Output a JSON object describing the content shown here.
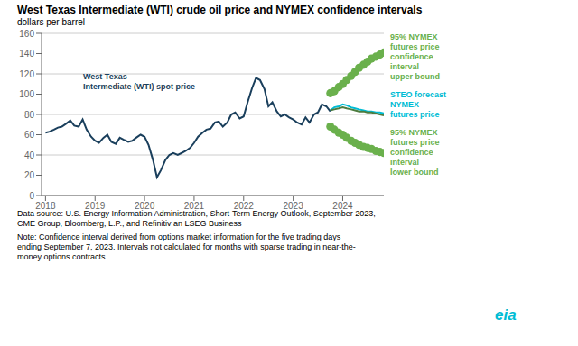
{
  "chart_data": {
    "type": "line",
    "title": "West Texas Intermediate (WTI) crude oil price and NYMEX confidence intervals",
    "subtitle": "dollars per barrel",
    "xlim": [
      2017.92,
      2024.83
    ],
    "xticks": [
      2018,
      2019,
      2020,
      2021,
      2022,
      2023,
      2024
    ],
    "ylim": [
      0,
      160
    ],
    "yticks": [
      0,
      20,
      40,
      60,
      80,
      100,
      120,
      140,
      160
    ],
    "grid": true,
    "series": [
      {
        "type": "line",
        "color": "#1a3f5c",
        "x": [
          2018.0,
          2018.08,
          2018.17,
          2018.25,
          2018.33,
          2018.42,
          2018.5,
          2018.58,
          2018.67,
          2018.75,
          2018.83,
          2018.92,
          2019.0,
          2019.08,
          2019.17,
          2019.25,
          2019.33,
          2019.42,
          2019.5,
          2019.58,
          2019.67,
          2019.75,
          2019.83,
          2019.92,
          2020.0,
          2020.08,
          2020.17,
          2020.25,
          2020.33,
          2020.42,
          2020.5,
          2020.58,
          2020.67,
          2020.75,
          2020.83,
          2020.92,
          2021.0,
          2021.08,
          2021.17,
          2021.25,
          2021.33,
          2021.42,
          2021.5,
          2021.58,
          2021.67,
          2021.75,
          2021.83,
          2021.92,
          2022.0,
          2022.08,
          2022.17,
          2022.25,
          2022.33,
          2022.42,
          2022.5,
          2022.58,
          2022.67,
          2022.75,
          2022.83,
          2022.92,
          2023.0,
          2023.08,
          2023.17,
          2023.25,
          2023.33,
          2023.42,
          2023.5,
          2023.58,
          2023.67,
          2023.75
        ],
        "values": [
          62,
          63,
          65,
          67,
          68,
          71,
          74,
          69,
          68,
          75,
          65,
          58,
          54,
          52,
          57,
          60,
          53,
          51,
          57,
          55,
          53,
          54,
          57,
          60,
          58,
          50,
          35,
          18,
          25,
          35,
          40,
          42,
          40,
          42,
          44,
          47,
          52,
          58,
          62,
          65,
          66,
          72,
          73,
          68,
          72,
          80,
          82,
          76,
          78,
          92,
          106,
          116,
          114,
          105,
          88,
          92,
          83,
          78,
          80,
          77,
          75,
          72,
          70,
          77,
          72,
          80,
          82,
          90,
          88,
          83
        ]
      },
      {
        "type": "line",
        "color": "#00bcd4",
        "x": [
          2023.75,
          2023.83,
          2023.92,
          2024.0,
          2024.08,
          2024.17,
          2024.25,
          2024.33,
          2024.42,
          2024.5,
          2024.58,
          2024.67,
          2024.75,
          2024.83
        ],
        "values": [
          84,
          87,
          88,
          90,
          89,
          87,
          86,
          85,
          84,
          83,
          83,
          82,
          82,
          81
        ]
      },
      {
        "type": "line",
        "color": "#4d7c3f",
        "x": [
          2023.75,
          2023.83,
          2023.92,
          2024.0,
          2024.08,
          2024.17,
          2024.25,
          2024.33,
          2024.42,
          2024.5,
          2024.58,
          2024.67,
          2024.75,
          2024.83
        ],
        "values": [
          84,
          85,
          86,
          87,
          86,
          85,
          84,
          83,
          83,
          82,
          82,
          81,
          80,
          79
        ]
      },
      {
        "type": "scatter",
        "marker": "circle",
        "color": "#6ab04c",
        "x": [
          2023.75,
          2023.83,
          2023.92,
          2024.0,
          2024.08,
          2024.17,
          2024.25,
          2024.33,
          2024.42,
          2024.5,
          2024.58,
          2024.67,
          2024.75,
          2024.83
        ],
        "values": [
          101,
          103,
          107,
          110,
          114,
          118,
          122,
          126,
          129,
          132,
          135,
          137,
          139,
          141
        ]
      },
      {
        "type": "scatter",
        "marker": "circle",
        "color": "#6ab04c",
        "x": [
          2023.75,
          2023.83,
          2023.92,
          2024.0,
          2024.08,
          2024.17,
          2024.25,
          2024.33,
          2024.42,
          2024.5,
          2024.58,
          2024.67,
          2024.75,
          2024.83
        ],
        "values": [
          68,
          65,
          62,
          60,
          57,
          54,
          52,
          50,
          48,
          47,
          46,
          44,
          43,
          42
        ]
      }
    ],
    "annotations": [
      {
        "text": "West Texas\nIntermediate (WTI) spot price",
        "color": "#1a3f5c"
      },
      {
        "text": "95% NYMEX\nfutures price\nconfidence\ninterval\nupper bound",
        "color": "#6ab04c"
      },
      {
        "text": "STEO forecast\nNYMEX\nfutures price",
        "color": "#00bcd4"
      },
      {
        "text": "95% NYMEX\nfutures price\nconfidence\ninterval\nlower bound",
        "color": "#6ab04c"
      },
      {
        "text": "eia",
        "color": "#00bcd4"
      }
    ],
    "footnotes": [
      "Data source: U.S. Energy Information Administration, Short-Term Energy Outlook, September 2023,",
      "CME Group, Bloomberg, L.P., and Refinitiv an LSEG Business",
      "Note: Confidence interval derived from options market information for the five trading days",
      "ending September 7, 2023. Intervals not calculated for months with sparse trading in near-the-",
      "money options contracts."
    ]
  }
}
